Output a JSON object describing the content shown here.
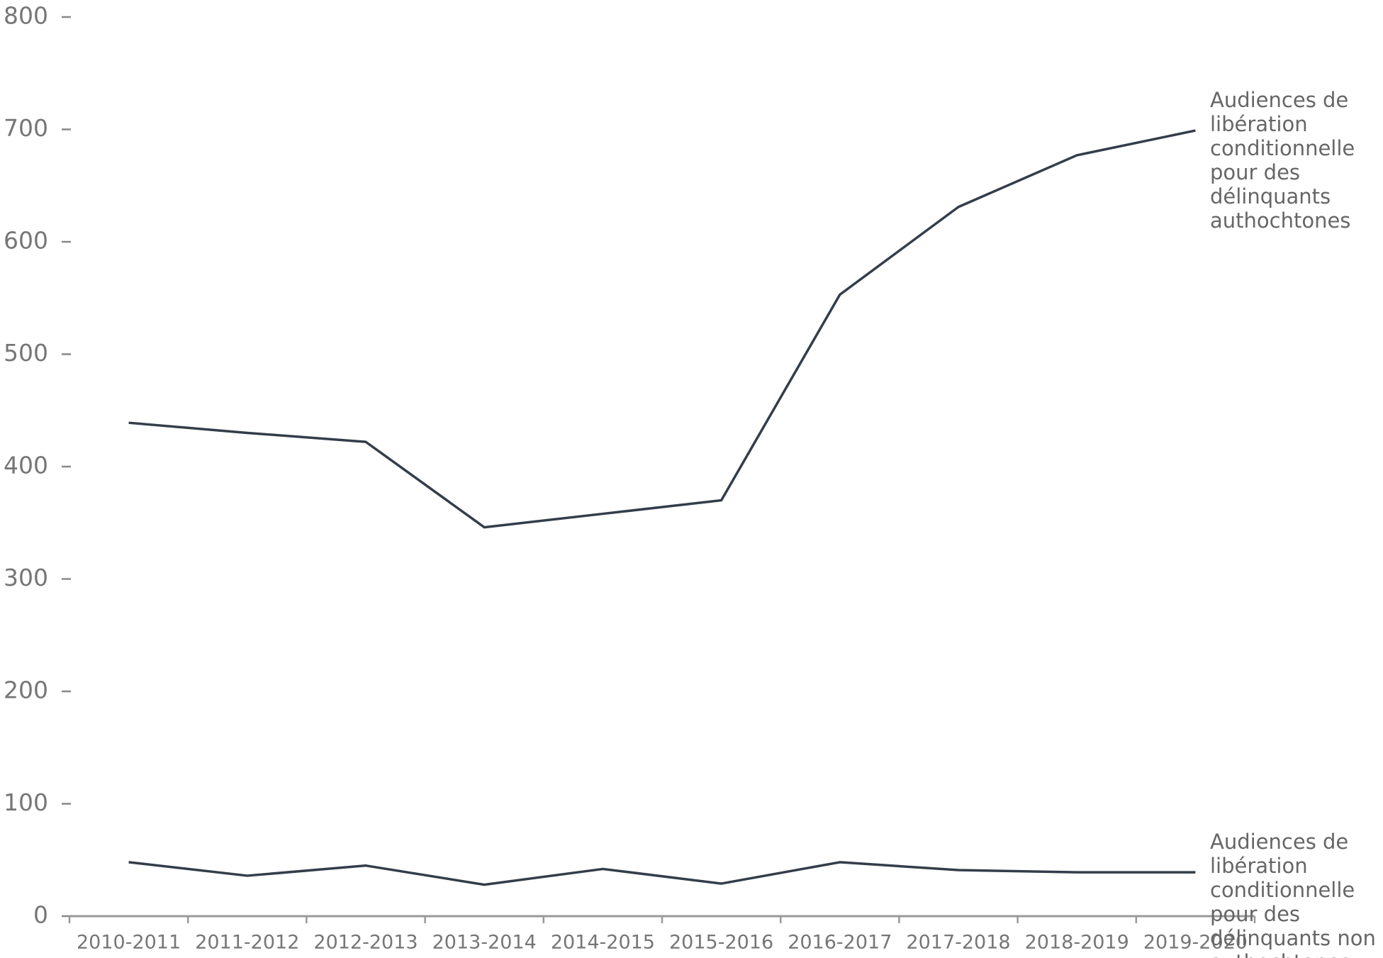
{
  "chart_data": {
    "type": "line",
    "categories": [
      "2010-2011",
      "2011-2012",
      "2012-2013",
      "2013-2014",
      "2014-2015",
      "2015-2016",
      "2016-2017",
      "2017-2018",
      "2018-2019",
      "2019-2020"
    ],
    "series": [
      {
        "name": "Audiences de libération conditionnelle pour des délinquants authochtones",
        "color": "#333d4a",
        "values": [
          439,
          430,
          422,
          346,
          358,
          370,
          553,
          631,
          677,
          699
        ]
      },
      {
        "name": "Audiences de libération conditionnelle pour des délinquants non authochtones",
        "color": "#333d4a",
        "values": [
          48,
          36,
          45,
          28,
          42,
          29,
          48,
          41,
          39,
          39
        ]
      }
    ],
    "ylim": [
      0,
      800
    ],
    "yticks": [
      0,
      100,
      200,
      300,
      400,
      500,
      600,
      700,
      800
    ],
    "grid": false
  }
}
